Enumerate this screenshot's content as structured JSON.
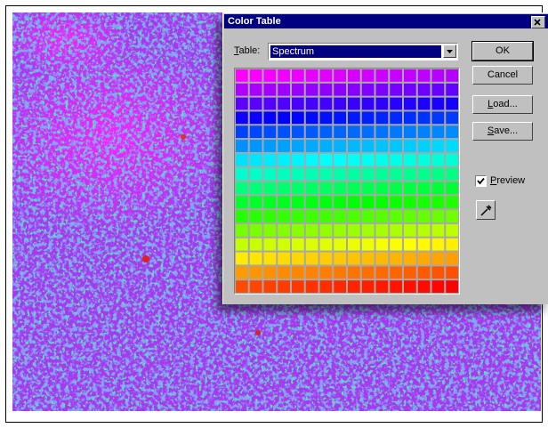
{
  "dialog": {
    "title": "Color Table",
    "table_label": "Table:",
    "table_value": "Spectrum",
    "buttons": [
      "OK",
      "Cancel",
      "Load...",
      "Save..."
    ],
    "preview_label": "Preview"
  }
}
